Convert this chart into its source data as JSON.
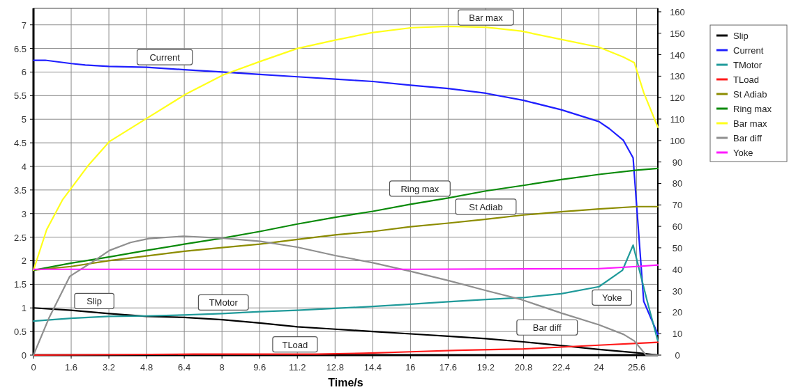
{
  "chart_data": {
    "type": "line",
    "xlabel": "Time/s",
    "xlim": [
      0,
      26.5
    ],
    "xticks": [
      0,
      1.6,
      3.2,
      4.8,
      6.4,
      8,
      9.6,
      11.2,
      12.8,
      14.4,
      16,
      17.6,
      19.2,
      20.8,
      22.4,
      24,
      25.6
    ],
    "ylim": [
      0,
      7.35
    ],
    "yticks": [
      0,
      0.5,
      1,
      1.5,
      2,
      2.5,
      3,
      3.5,
      4,
      4.5,
      5,
      5.5,
      6,
      6.5,
      7
    ],
    "y2lim": [
      0,
      161.6
    ],
    "y2ticks": [
      0,
      10,
      20,
      30,
      40,
      50,
      60,
      70,
      80,
      90,
      100,
      110,
      120,
      130,
      140,
      150,
      160
    ],
    "grid": true,
    "legend": "right",
    "line_style": "solid",
    "series": [
      {
        "name": "Slip",
        "color": "#000000",
        "x": [
          0,
          1.6,
          3.2,
          4.8,
          6.4,
          8,
          9.6,
          11.2,
          12.8,
          14.4,
          16,
          17.6,
          19.2,
          20.8,
          22.4,
          24,
          25.6,
          26.5
        ],
        "values": [
          1,
          0.95,
          0.88,
          0.82,
          0.8,
          0.75,
          0.68,
          0.6,
          0.55,
          0.5,
          0.45,
          0.4,
          0.35,
          0.28,
          0.2,
          0.12,
          0.05,
          0
        ]
      },
      {
        "name": "Current",
        "color": "#1f1fff",
        "x": [
          0,
          0.5,
          1.6,
          2.2,
          3.2,
          4.8,
          6.4,
          8,
          9.6,
          11.2,
          12.8,
          14.4,
          16,
          17.6,
          19.2,
          20.8,
          22.4,
          24,
          24.44,
          25.04,
          25.45,
          25.9,
          26.5
        ],
        "values": [
          6.25,
          6.25,
          6.18,
          6.15,
          6.12,
          6.1,
          6.05,
          6,
          5.95,
          5.9,
          5.85,
          5.8,
          5.72,
          5.65,
          5.55,
          5.4,
          5.2,
          4.95,
          4.8,
          4.55,
          4.18,
          1.14,
          0.44
        ]
      },
      {
        "name": "TMotor",
        "color": "#1f9a9a",
        "x": [
          0,
          1.6,
          3.2,
          4.8,
          6.4,
          8,
          9.6,
          11.2,
          12.8,
          14.4,
          16,
          17.6,
          19.2,
          20.8,
          22.4,
          24,
          25,
          25.45,
          26.05,
          26.5
        ],
        "values": [
          0.72,
          0.78,
          0.82,
          0.83,
          0.85,
          0.88,
          0.92,
          0.95,
          0.99,
          1.03,
          1.08,
          1.13,
          1.18,
          1.22,
          1.3,
          1.45,
          1.8,
          2.33,
          1.14,
          0.3
        ]
      },
      {
        "name": "TLoad",
        "color": "#ff1a1a",
        "x": [
          0,
          6.8,
          12,
          14,
          16,
          18,
          20.8,
          22.4,
          24,
          25.6,
          26.5
        ],
        "values": [
          0,
          0.02,
          0.02,
          0.04,
          0.07,
          0.1,
          0.13,
          0.17,
          0.21,
          0.25,
          0.27
        ]
      },
      {
        "name": "St Adiab",
        "color": "#8c8c00",
        "axis": "y2",
        "x": [
          0,
          1.6,
          3.2,
          4.8,
          6.4,
          8,
          9.6,
          11.2,
          12.8,
          14.4,
          16,
          17.6,
          19.2,
          20.8,
          22.4,
          24,
          25.6,
          26.5
        ],
        "values": [
          39.6,
          41.3,
          44,
          46.2,
          48.4,
          50.1,
          51.7,
          53.9,
          56,
          57.6,
          59.8,
          61.5,
          63.3,
          65.3,
          66.8,
          68.1,
          69.2,
          69.2
        ]
      },
      {
        "name": "Ring max",
        "color": "#0a8a0a",
        "axis": "y2",
        "x": [
          0,
          1.6,
          3.2,
          4.8,
          6.4,
          8,
          9.6,
          11.2,
          12.8,
          14.4,
          16,
          17.6,
          19.2,
          20.8,
          22.4,
          24,
          25.6,
          26.5
        ],
        "values": [
          39.6,
          42.9,
          45.7,
          48.8,
          51.7,
          54.5,
          57.6,
          61.1,
          64.2,
          67,
          70.3,
          73.2,
          76.5,
          79.1,
          81.8,
          84.2,
          86.2,
          87
        ]
      },
      {
        "name": "Bar max",
        "color": "#ffff1a",
        "axis": "y2",
        "x": [
          0,
          0.56,
          1.24,
          2.34,
          3.23,
          4.8,
          6.49,
          8.06,
          9.63,
          11.2,
          12.8,
          14.37,
          16.06,
          17.6,
          19.2,
          20.7,
          22.4,
          24,
          25.04,
          25.5,
          25.9,
          26.5
        ],
        "values": [
          39.6,
          58.5,
          72.5,
          88.6,
          99.6,
          110.3,
          121.8,
          130.6,
          136.9,
          142.9,
          146.8,
          150.3,
          152.6,
          153.2,
          152.8,
          151,
          147.1,
          143.5,
          138.9,
          136.3,
          122.4,
          106.2
        ]
      },
      {
        "name": "Bar diff",
        "color": "#8f8f8f",
        "axis": "y2",
        "x": [
          0,
          0.65,
          1.54,
          2.43,
          3.23,
          4.12,
          4.9,
          6.37,
          8.06,
          9.63,
          11.2,
          12.8,
          14.37,
          16.06,
          17.63,
          19.2,
          20.7,
          22.4,
          24,
          25.04,
          25.5,
          26,
          26.5
        ],
        "values": [
          0,
          17.1,
          36.7,
          42.9,
          48.8,
          52.5,
          54.3,
          55.4,
          54.5,
          53,
          50.3,
          46.4,
          43.1,
          38.9,
          34.7,
          30.1,
          25.9,
          19.6,
          14.1,
          9.7,
          6.6,
          0,
          0
        ]
      },
      {
        "name": "Yoke",
        "color": "#ff1aff",
        "axis": "y2",
        "x": [
          0,
          16,
          24,
          25.6,
          26.5
        ],
        "values": [
          40,
          40,
          40.3,
          41.3,
          42
        ]
      }
    ],
    "annotations": [
      {
        "text": "Current",
        "x": 5.57,
        "y": 6.08
      },
      {
        "text": "Bar max",
        "x": 19.2,
        "y": 6.95
      },
      {
        "text": "Ring max",
        "x": 16.4,
        "y": 3.235
      },
      {
        "text": "St Adiab",
        "x": 19.2,
        "y": 2.88
      },
      {
        "text": "Yoke",
        "x": 24.55,
        "y": 1.84
      },
      {
        "text": "Bar diff",
        "x": 21.8,
        "y": 1
      },
      {
        "text": "Slip",
        "x": 2.58,
        "y": 0.91
      },
      {
        "text": "TMotor",
        "x": 8.06,
        "y": 0.88
      },
      {
        "text": "TLoad",
        "x": 11.1,
        "y": 0.02
      }
    ]
  }
}
